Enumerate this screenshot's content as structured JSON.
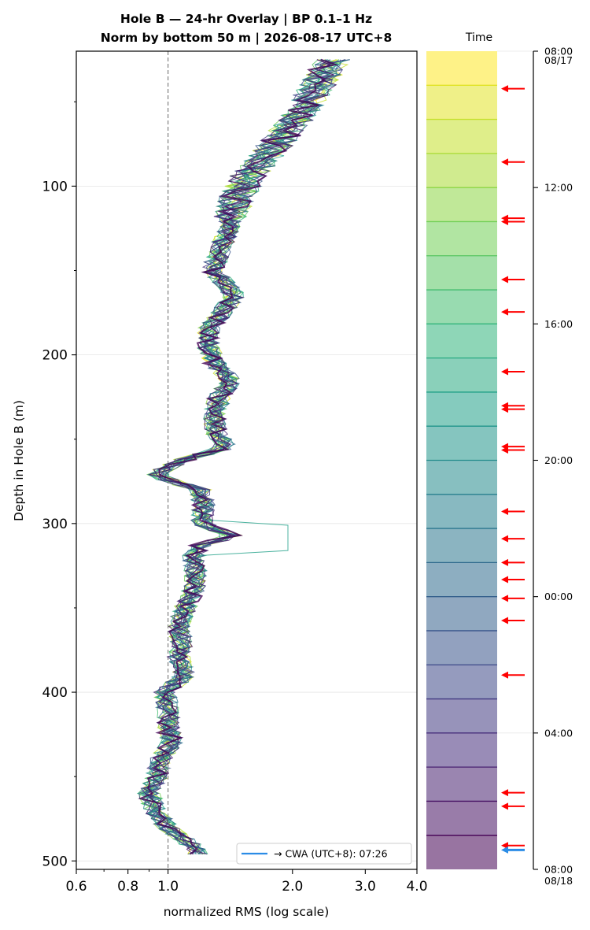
{
  "title_line1": "Hole B — 24-hr Overlay  |  BP 0.1–1 Hz",
  "title_line2": "Norm by bottom 50 m  |  2026-08-17 UTC+8",
  "colorbar_title": "Time",
  "legend_label": "→ CWA (UTC+8): 07:26",
  "colors": {
    "reference_line": "#808080",
    "event_arrow": "#ff0000",
    "cwa_arrow": "#2b8ce6",
    "viridis": [
      "#440154",
      "#482878",
      "#3e4a89",
      "#31688e",
      "#26828e",
      "#1f9e89",
      "#35b779",
      "#6ece58",
      "#b5de2b",
      "#fde725"
    ]
  },
  "chart_data": {
    "type": "line",
    "xlabel": "normalized RMS  (log scale)",
    "ylabel": "Depth in Hole B (m)",
    "x_scale": "log",
    "xlim": [
      0.6,
      4.0
    ],
    "ylim": [
      505,
      20
    ],
    "y_inverted": true,
    "x_ticks": [
      {
        "value": 0.6,
        "label": "0.6"
      },
      {
        "value": 0.8,
        "label": "0.8"
      },
      {
        "value": 1.0,
        "label": "1.0"
      },
      {
        "value": 2.0,
        "label": "2.0"
      },
      {
        "value": 3.0,
        "label": "3.0"
      },
      {
        "value": 4.0,
        "label": "4.0"
      }
    ],
    "y_ticks": [
      {
        "value": 100,
        "label": "100"
      },
      {
        "value": 200,
        "label": "200"
      },
      {
        "value": 300,
        "label": "300"
      },
      {
        "value": 400,
        "label": "400"
      },
      {
        "value": 500,
        "label": "500"
      }
    ],
    "reference_x": 1.0,
    "grid": "horizontal",
    "legend_placement": "bottom-right",
    "n_traces": 24,
    "base_profile": {
      "depth": [
        25,
        40,
        60,
        80,
        95,
        110,
        125,
        140,
        150,
        160,
        165,
        175,
        185,
        195,
        205,
        215,
        225,
        235,
        245,
        255,
        262,
        270,
        275,
        280,
        290,
        300,
        308,
        312,
        320,
        330,
        340,
        350,
        360,
        370,
        380,
        390,
        400,
        410,
        420,
        430,
        440,
        450,
        460,
        470,
        480,
        490,
        497
      ],
      "rms": [
        2.5,
        2.3,
        2.05,
        1.75,
        1.55,
        1.45,
        1.4,
        1.33,
        1.28,
        1.4,
        1.45,
        1.35,
        1.25,
        1.25,
        1.3,
        1.42,
        1.33,
        1.3,
        1.3,
        1.38,
        1.1,
        0.93,
        1.02,
        1.2,
        1.22,
        1.2,
        1.45,
        1.2,
        1.15,
        1.17,
        1.15,
        1.1,
        1.06,
        1.08,
        1.06,
        1.1,
        0.98,
        1.0,
        1.0,
        1.02,
        0.96,
        0.94,
        0.9,
        0.93,
        1.0,
        1.13,
        1.2
      ]
    }
  },
  "colorbar": {
    "time_ticks": [
      {
        "label": "08:00",
        "sublabel": "08/17",
        "hours": 0
      },
      {
        "label": "12:00",
        "sublabel": "",
        "hours": 4
      },
      {
        "label": "16:00",
        "sublabel": "",
        "hours": 8
      },
      {
        "label": "20:00",
        "sublabel": "",
        "hours": 12
      },
      {
        "label": "00:00",
        "sublabel": "",
        "hours": 16
      },
      {
        "label": "04:00",
        "sublabel": "",
        "hours": 20
      },
      {
        "label": "08:00",
        "sublabel": "08/18",
        "hours": 24
      }
    ],
    "event_hours": [
      1.1,
      3.25,
      4.9,
      5.0,
      6.7,
      7.65,
      9.4,
      10.4,
      10.5,
      11.6,
      11.7,
      13.5,
      14.3,
      15.0,
      15.5,
      16.05,
      16.7,
      18.3,
      21.75,
      22.15,
      23.3
    ],
    "cwa_hours": 23.43
  }
}
